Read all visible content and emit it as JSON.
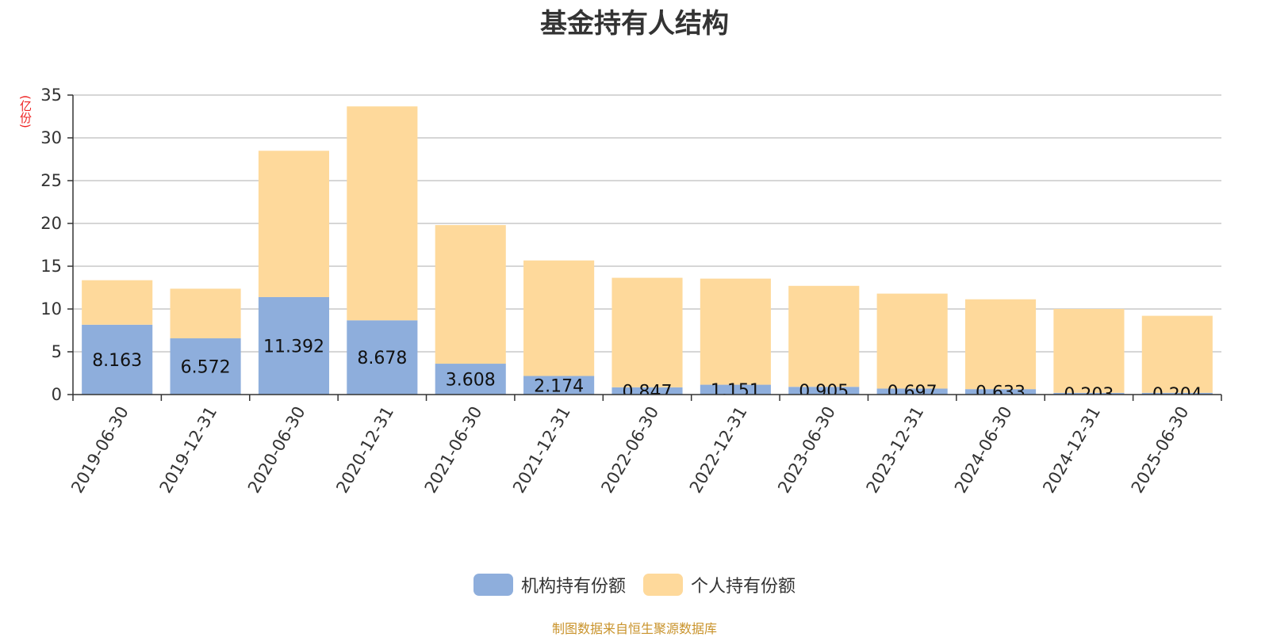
{
  "title": "基金持有人结构",
  "unit_label": "(亿份)",
  "source_note": "制图数据来自恒生聚源数据库",
  "chart_data": {
    "type": "bar",
    "stacked": true,
    "title": "基金持有人结构",
    "ylabel": "(亿份)",
    "xlabel": "",
    "ylim": [
      0,
      35
    ],
    "yticks": [
      0,
      5,
      10,
      15,
      20,
      25,
      30,
      35
    ],
    "grid": true,
    "legend_position": "bottom-center",
    "categories": [
      "2019-06-30",
      "2019-12-31",
      "2020-06-30",
      "2020-12-31",
      "2021-06-30",
      "2021-12-31",
      "2022-06-30",
      "2022-12-31",
      "2023-06-30",
      "2023-12-31",
      "2024-06-30",
      "2024-12-31",
      "2025-06-30"
    ],
    "series": [
      {
        "name": "机构持有份额",
        "color": "#8eaedc",
        "values": [
          8.163,
          6.572,
          11.392,
          8.678,
          3.608,
          2.174,
          0.847,
          1.151,
          0.905,
          0.697,
          0.633,
          0.203,
          0.204
        ],
        "labels": [
          "8.163",
          "6.572",
          "11.392",
          "8.678",
          "3.608",
          "2.174",
          "0.847",
          "1.151",
          "0.905",
          "0.697",
          "0.633",
          "0.203",
          "0.204"
        ]
      },
      {
        "name": "个人持有份额",
        "color": "#fed99b",
        "values": [
          5.2,
          5.8,
          17.1,
          25.0,
          16.2,
          13.5,
          12.8,
          12.4,
          11.8,
          11.1,
          10.5,
          9.8,
          9.0
        ]
      }
    ]
  }
}
